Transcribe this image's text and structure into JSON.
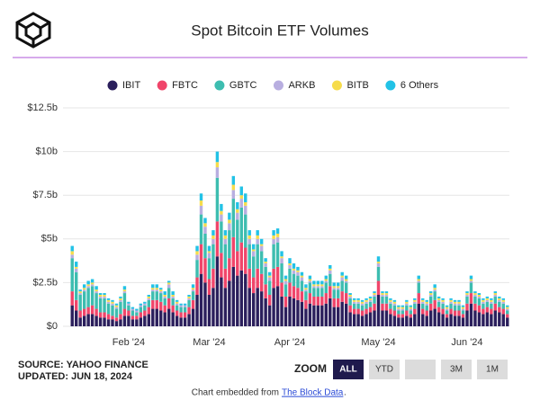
{
  "chart_data": {
    "type": "stacked-bar",
    "title": "Spot Bitcoin ETF Volumes",
    "categories": [
      null,
      null,
      null,
      null,
      null,
      null,
      null,
      null,
      null,
      null,
      null,
      null,
      null,
      null,
      "Feb '24",
      null,
      null,
      null,
      null,
      null,
      null,
      null,
      null,
      null,
      null,
      null,
      null,
      null,
      null,
      null,
      null,
      null,
      null,
      null,
      "Mar '24",
      null,
      null,
      null,
      null,
      null,
      null,
      null,
      null,
      null,
      null,
      null,
      null,
      null,
      null,
      null,
      null,
      null,
      null,
      null,
      "Apr '24",
      null,
      null,
      null,
      null,
      null,
      null,
      null,
      null,
      null,
      null,
      null,
      null,
      null,
      null,
      null,
      null,
      null,
      null,
      null,
      null,
      null,
      "May '24",
      null,
      null,
      null,
      null,
      null,
      null,
      null,
      null,
      null,
      null,
      null,
      null,
      null,
      null,
      null,
      null,
      null,
      null,
      null,
      null,
      null,
      "Jun '24",
      null,
      null,
      null,
      null,
      null,
      null,
      null,
      null,
      null,
      null
    ],
    "series": [
      {
        "name": "IBIT",
        "color": "#2b1f5c",
        "values": [
          1.2,
          0.9,
          0.5,
          0.6,
          0.7,
          0.7,
          0.6,
          0.5,
          0.5,
          0.4,
          0.4,
          0.3,
          0.4,
          0.6,
          0.6,
          0.4,
          0.4,
          0.5,
          0.6,
          0.7,
          1.0,
          1.0,
          0.9,
          0.8,
          1.0,
          0.8,
          0.6,
          0.5,
          0.5,
          0.7,
          1.0,
          1.8,
          3.0,
          2.5,
          1.8,
          2.2,
          4.0,
          2.8,
          2.2,
          2.6,
          3.4,
          2.9,
          3.2,
          3.0,
          2.2,
          1.9,
          2.2,
          2.0,
          1.6,
          1.2,
          2.2,
          2.3,
          1.7,
          1.1,
          1.7,
          1.6,
          1.5,
          1.4,
          1.0,
          1.3,
          1.2,
          1.2,
          1.2,
          1.3,
          1.6,
          1.1,
          1.1,
          1.4,
          1.3,
          0.8,
          0.7,
          0.7,
          0.6,
          0.7,
          0.8,
          0.9,
          1.8,
          0.9,
          0.9,
          0.7,
          0.6,
          0.5,
          0.5,
          0.6,
          0.5,
          0.7,
          1.3,
          0.7,
          0.6,
          0.9,
          1.0,
          0.8,
          0.7,
          0.5,
          0.7,
          0.6,
          0.6,
          0.5,
          0.9,
          1.3,
          0.9,
          0.8,
          0.7,
          0.8,
          0.7,
          0.9,
          0.8,
          0.7,
          0.5
        ]
      },
      {
        "name": "FBTC",
        "color": "#f0456a",
        "values": [
          0.8,
          0.6,
          0.4,
          0.4,
          0.4,
          0.5,
          0.4,
          0.3,
          0.3,
          0.3,
          0.2,
          0.2,
          0.3,
          0.4,
          0.3,
          0.2,
          0.2,
          0.3,
          0.3,
          0.4,
          0.5,
          0.5,
          0.5,
          0.4,
          0.6,
          0.4,
          0.3,
          0.3,
          0.3,
          0.4,
          0.5,
          1.0,
          1.7,
          1.4,
          0.9,
          1.1,
          2.0,
          1.4,
          1.1,
          1.3,
          1.7,
          1.4,
          1.6,
          1.5,
          1.1,
          0.9,
          1.1,
          1.0,
          0.8,
          0.6,
          1.1,
          1.1,
          0.8,
          0.6,
          0.8,
          0.7,
          0.7,
          0.6,
          0.5,
          0.6,
          0.5,
          0.5,
          0.5,
          0.6,
          0.7,
          0.5,
          0.5,
          0.6,
          0.6,
          0.4,
          0.3,
          0.3,
          0.3,
          0.3,
          0.3,
          0.4,
          0.8,
          0.4,
          0.4,
          0.3,
          0.3,
          0.2,
          0.2,
          0.3,
          0.2,
          0.3,
          0.6,
          0.3,
          0.3,
          0.4,
          0.5,
          0.3,
          0.3,
          0.2,
          0.3,
          0.3,
          0.3,
          0.2,
          0.4,
          0.6,
          0.4,
          0.4,
          0.3,
          0.3,
          0.3,
          0.4,
          0.3,
          0.3,
          0.2
        ]
      },
      {
        "name": "GBTC",
        "color": "#3dbdb0",
        "values": [
          1.9,
          1.6,
          0.9,
          1.0,
          1.1,
          1.1,
          0.9,
          0.8,
          0.8,
          0.6,
          0.6,
          0.5,
          0.7,
          0.9,
          0.3,
          0.3,
          0.2,
          0.3,
          0.3,
          0.4,
          0.5,
          0.5,
          0.5,
          0.4,
          0.6,
          0.4,
          0.3,
          0.3,
          0.3,
          0.4,
          0.5,
          1.0,
          1.7,
          1.4,
          1.2,
          1.4,
          2.5,
          1.8,
          1.4,
          1.6,
          2.2,
          1.8,
          2.0,
          1.9,
          1.4,
          1.2,
          1.4,
          1.3,
          1.0,
          0.8,
          1.4,
          1.4,
          1.1,
          0.7,
          0.8,
          0.7,
          0.7,
          0.6,
          0.5,
          0.6,
          0.5,
          0.5,
          0.5,
          0.6,
          0.7,
          0.5,
          0.5,
          0.6,
          0.6,
          0.4,
          0.3,
          0.3,
          0.3,
          0.3,
          0.3,
          0.4,
          0.8,
          0.4,
          0.4,
          0.3,
          0.3,
          0.2,
          0.2,
          0.3,
          0.2,
          0.3,
          0.6,
          0.3,
          0.3,
          0.4,
          0.5,
          0.3,
          0.3,
          0.2,
          0.3,
          0.3,
          0.3,
          0.2,
          0.4,
          0.6,
          0.4,
          0.4,
          0.3,
          0.3,
          0.3,
          0.4,
          0.3,
          0.3,
          0.2
        ]
      },
      {
        "name": "ARKB",
        "color": "#b8aee0",
        "values": [
          0.2,
          0.2,
          0.1,
          0.1,
          0.1,
          0.1,
          0.1,
          0.1,
          0.1,
          0.1,
          0.1,
          0.1,
          0.1,
          0.1,
          0.1,
          0.1,
          0.1,
          0.1,
          0.1,
          0.1,
          0.1,
          0.1,
          0.1,
          0.1,
          0.2,
          0.1,
          0.1,
          0.1,
          0.1,
          0.1,
          0.1,
          0.3,
          0.5,
          0.4,
          0.3,
          0.3,
          0.6,
          0.4,
          0.3,
          0.4,
          0.5,
          0.4,
          0.5,
          0.5,
          0.3,
          0.3,
          0.3,
          0.3,
          0.2,
          0.2,
          0.3,
          0.3,
          0.3,
          0.2,
          0.2,
          0.2,
          0.2,
          0.2,
          0.1,
          0.1,
          0.1,
          0.1,
          0.1,
          0.1,
          0.2,
          0.1,
          0.1,
          0.2,
          0.1,
          0.1,
          0.1,
          0.1,
          0.1,
          0.1,
          0.1,
          0.1,
          0.2,
          0.1,
          0.1,
          0.1,
          0.1,
          0.1,
          0.1,
          0.1,
          0.1,
          0.1,
          0.1,
          0.1,
          0.1,
          0.1,
          0.1,
          0.1,
          0.1,
          0.1,
          0.1,
          0.1,
          0.1,
          0.1,
          0.1,
          0.1,
          0.1,
          0.1,
          0.1,
          0.1,
          0.1,
          0.1,
          0.1,
          0.1,
          0.1
        ]
      },
      {
        "name": "BITB",
        "color": "#f6dc4b",
        "values": [
          0.2,
          0.1,
          0.1,
          0.1,
          0.1,
          0.1,
          0.1,
          0.1,
          0.1,
          0.1,
          0.1,
          0.1,
          0.1,
          0.1,
          0.0,
          0.0,
          0.0,
          0.0,
          0.0,
          0.1,
          0.1,
          0.1,
          0.1,
          0.1,
          0.1,
          0.1,
          0.1,
          0.0,
          0.0,
          0.1,
          0.1,
          0.2,
          0.3,
          0.2,
          0.1,
          0.2,
          0.3,
          0.2,
          0.2,
          0.2,
          0.3,
          0.2,
          0.2,
          0.2,
          0.2,
          0.1,
          0.2,
          0.1,
          0.1,
          0.1,
          0.2,
          0.2,
          0.1,
          0.1,
          0.1,
          0.1,
          0.1,
          0.1,
          0.1,
          0.1,
          0.1,
          0.1,
          0.1,
          0.1,
          0.1,
          0.1,
          0.1,
          0.1,
          0.1,
          0.1,
          0.1,
          0.1,
          0.1,
          0.1,
          0.1,
          0.1,
          0.1,
          0.1,
          0.1,
          0.1,
          0.1,
          0.1,
          0.1,
          0.1,
          0.1,
          0.1,
          0.1,
          0.1,
          0.1,
          0.1,
          0.1,
          0.1,
          0.1,
          0.1,
          0.1,
          0.1,
          0.1,
          0.1,
          0.1,
          0.1,
          0.1,
          0.1,
          0.1,
          0.1,
          0.1,
          0.1,
          0.1,
          0.1,
          0.1
        ]
      },
      {
        "name": "6 Others",
        "color": "#22c2e6",
        "values": [
          0.3,
          0.3,
          0.1,
          0.2,
          0.2,
          0.2,
          0.2,
          0.1,
          0.1,
          0.1,
          0.1,
          0.1,
          0.1,
          0.2,
          0.1,
          0.1,
          0.1,
          0.1,
          0.1,
          0.1,
          0.2,
          0.2,
          0.1,
          0.2,
          0.1,
          0.2,
          0.1,
          0.1,
          0.1,
          0.1,
          0.2,
          0.3,
          0.4,
          0.3,
          0.3,
          0.3,
          0.6,
          0.4,
          0.3,
          0.4,
          0.5,
          0.4,
          0.5,
          0.5,
          0.3,
          0.3,
          0.3,
          0.3,
          0.2,
          0.2,
          0.3,
          0.3,
          0.3,
          0.2,
          0.3,
          0.3,
          0.2,
          0.2,
          0.2,
          0.2,
          0.2,
          0.2,
          0.2,
          0.2,
          0.2,
          0.2,
          0.2,
          0.2,
          0.2,
          0.1,
          0.1,
          0.1,
          0.1,
          0.1,
          0.1,
          0.1,
          0.3,
          0.1,
          0.1,
          0.1,
          0.1,
          0.1,
          0.1,
          0.1,
          0.1,
          0.1,
          0.2,
          0.1,
          0.1,
          0.1,
          0.2,
          0.1,
          0.1,
          0.1,
          0.1,
          0.1,
          0.1,
          0.1,
          0.1,
          0.2,
          0.1,
          0.1,
          0.1,
          0.1,
          0.1,
          0.1,
          0.1,
          0.1,
          0.1
        ]
      }
    ],
    "ylim": [
      0,
      12.5
    ],
    "yticks": [
      {
        "value": 0,
        "label": "$0"
      },
      {
        "value": 2.5,
        "label": "$2.5b"
      },
      {
        "value": 5,
        "label": "$5b"
      },
      {
        "value": 7.5,
        "label": "$7.5b"
      },
      {
        "value": 10,
        "label": "$10b"
      },
      {
        "value": 12.5,
        "label": "$12.5b"
      }
    ],
    "grid": true,
    "legend": "top"
  },
  "page": {
    "source": "SOURCE: YAHOO FINANCE",
    "updated": "UPDATED: JUN 18, 2024",
    "zoom": "ZOOM",
    "buttons": [
      "ALL",
      "YTD",
      "3M",
      "1M"
    ],
    "embed": "Chart embedded from",
    "link": "The Block Data",
    "link_end": "."
  }
}
